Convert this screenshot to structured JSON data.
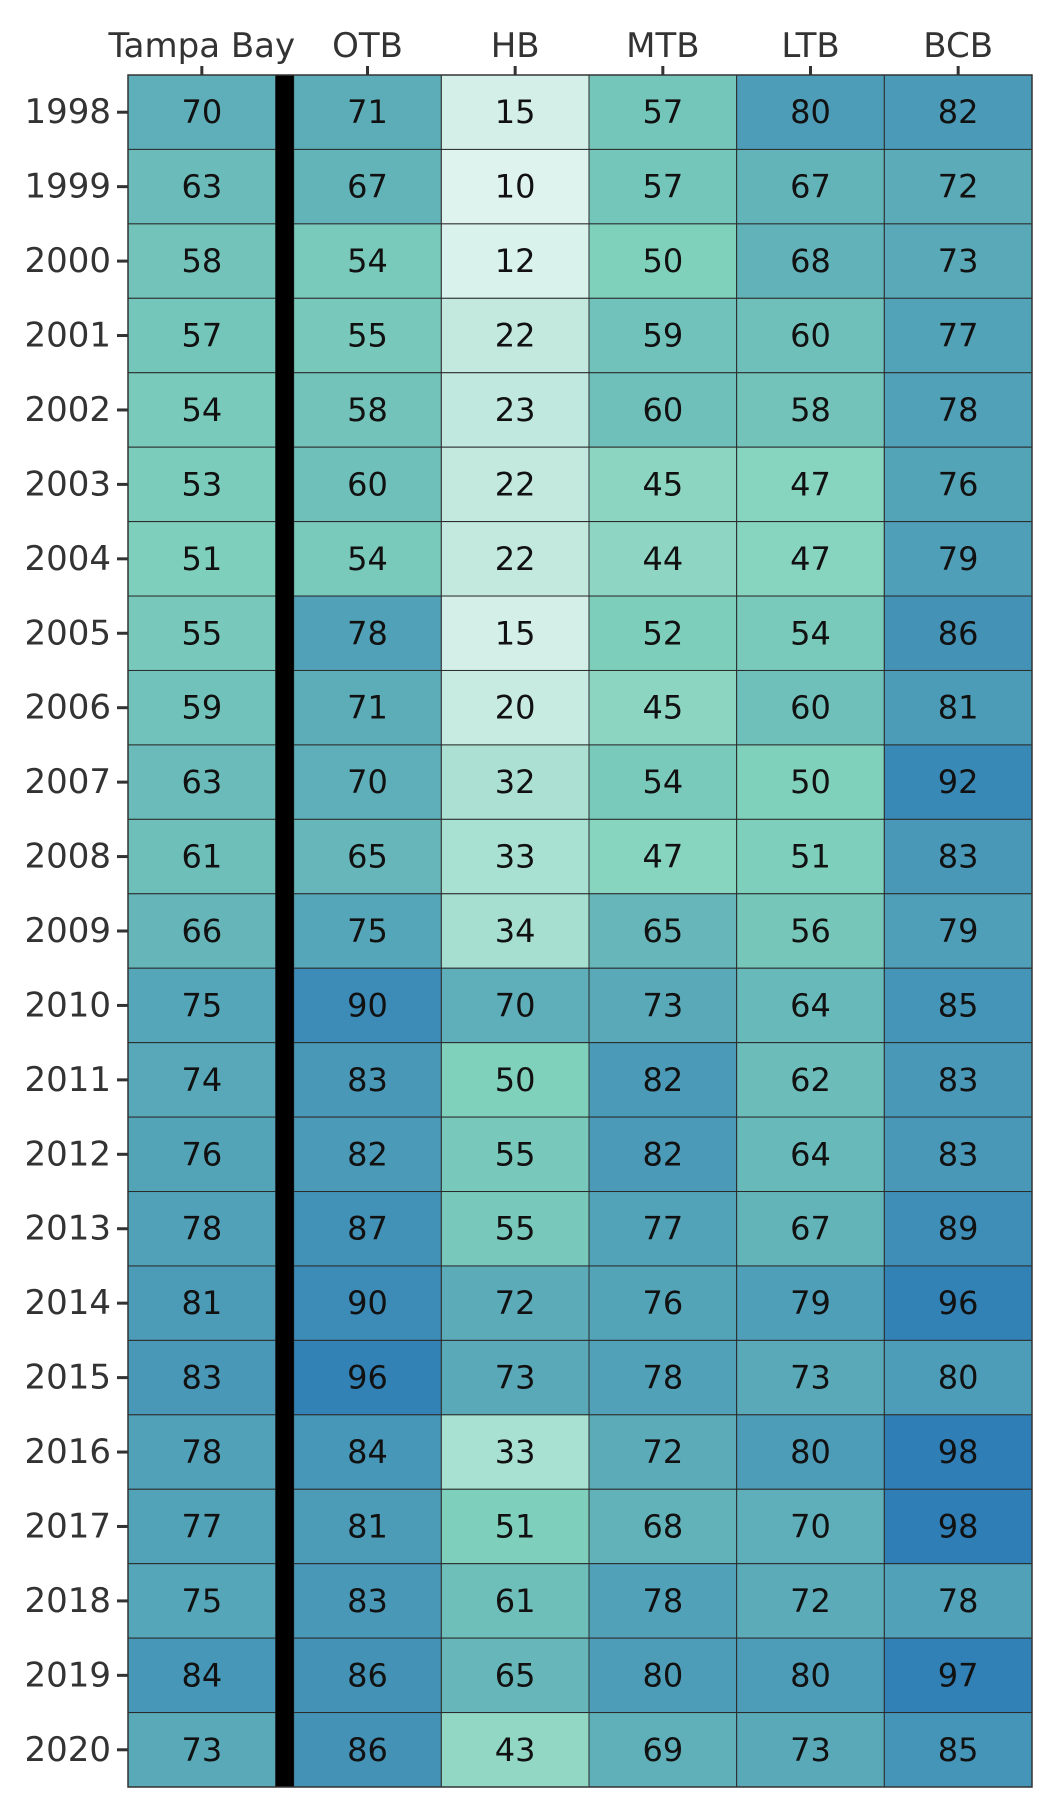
{
  "chart_data": {
    "type": "heatmap",
    "title": "",
    "xlabel": "",
    "ylabel": "",
    "columns": [
      "Tampa Bay",
      "OTB",
      "HB",
      "MTB",
      "LTB",
      "BCB"
    ],
    "rows": [
      "1998",
      "1999",
      "2000",
      "2001",
      "2002",
      "2003",
      "2004",
      "2005",
      "2006",
      "2007",
      "2008",
      "2009",
      "2010",
      "2011",
      "2012",
      "2013",
      "2014",
      "2015",
      "2016",
      "2017",
      "2018",
      "2019",
      "2020"
    ],
    "values": [
      [
        70,
        71,
        15,
        57,
        80,
        82
      ],
      [
        63,
        67,
        10,
        57,
        67,
        72
      ],
      [
        58,
        54,
        12,
        50,
        68,
        73
      ],
      [
        57,
        55,
        22,
        59,
        60,
        77
      ],
      [
        54,
        58,
        23,
        60,
        58,
        78
      ],
      [
        53,
        60,
        22,
        45,
        47,
        76
      ],
      [
        51,
        54,
        22,
        44,
        47,
        79
      ],
      [
        55,
        78,
        15,
        52,
        54,
        86
      ],
      [
        59,
        71,
        20,
        45,
        60,
        81
      ],
      [
        63,
        70,
        32,
        54,
        50,
        92
      ],
      [
        61,
        65,
        33,
        47,
        51,
        83
      ],
      [
        66,
        75,
        34,
        65,
        56,
        79
      ],
      [
        75,
        90,
        70,
        73,
        64,
        85
      ],
      [
        74,
        83,
        50,
        82,
        62,
        83
      ],
      [
        76,
        82,
        55,
        82,
        64,
        83
      ],
      [
        78,
        87,
        55,
        77,
        67,
        89
      ],
      [
        81,
        90,
        72,
        76,
        79,
        96
      ],
      [
        83,
        96,
        73,
        78,
        73,
        80
      ],
      [
        78,
        84,
        33,
        72,
        80,
        98
      ],
      [
        77,
        81,
        51,
        68,
        70,
        98
      ],
      [
        75,
        83,
        61,
        78,
        72,
        78
      ],
      [
        84,
        86,
        65,
        80,
        80,
        97
      ],
      [
        73,
        86,
        43,
        69,
        73,
        85
      ]
    ],
    "value_range": [
      0,
      100
    ],
    "color_scale": [
      "#f7fcfb",
      "#80d1bb",
      "#2c7bb6"
    ],
    "separator_after_column": "Tampa Bay",
    "separator_color": "#000000",
    "cell_border_color": "#2b2b2b",
    "grid": true,
    "legend": "none"
  }
}
